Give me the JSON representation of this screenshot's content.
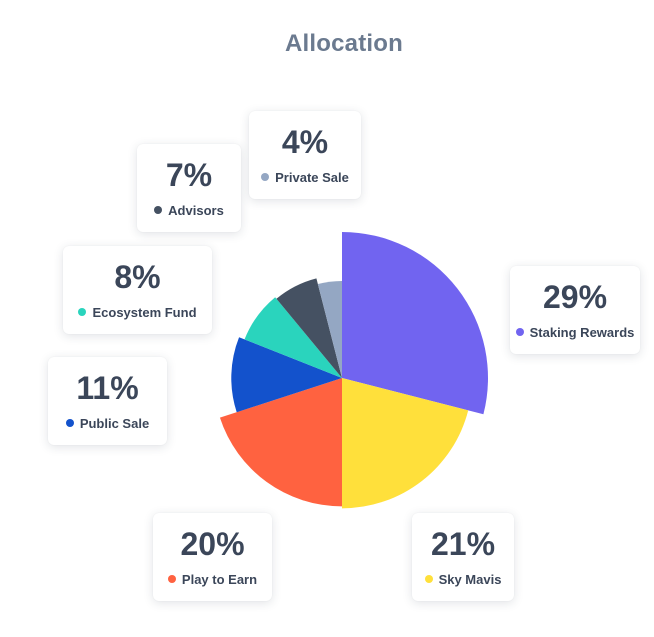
{
  "title": "Allocation",
  "chart_data": {
    "type": "pie",
    "title": "Allocation",
    "slices": [
      {
        "name": "Staking Rewards",
        "value": 29,
        "label": "29%",
        "color": "#7164f0"
      },
      {
        "name": "Sky Mavis",
        "value": 21,
        "label": "21%",
        "color": "#ffe03b"
      },
      {
        "name": "Play to Earn",
        "value": 20,
        "label": "20%",
        "color": "#ff6240"
      },
      {
        "name": "Public Sale",
        "value": 11,
        "label": "11%",
        "color": "#1352cc"
      },
      {
        "name": "Ecosystem Fund",
        "value": 8,
        "label": "8%",
        "color": "#2ad4bd"
      },
      {
        "name": "Advisors",
        "value": 7,
        "label": "7%",
        "color": "#455162"
      },
      {
        "name": "Private Sale",
        "value": 4,
        "label": "4%",
        "color": "#94a7c3"
      }
    ],
    "legend": "callout-cards"
  }
}
